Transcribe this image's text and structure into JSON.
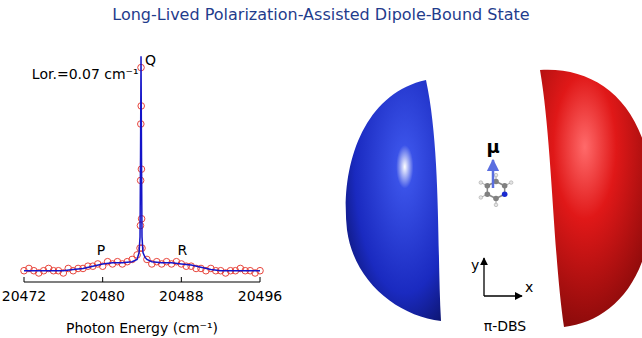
{
  "chart_data": {
    "type": "scatter",
    "title": "Long-Lived Polarization-Assisted Dipole-Bound State",
    "x_label": "Photon Energy (cm⁻¹)",
    "xlim": [
      20472,
      20496
    ],
    "xticks": [
      20472,
      20480,
      20488,
      20496
    ],
    "ylim": [
      0,
      1.05
    ],
    "tick_labels": "x",
    "grid": false,
    "series": [
      {
        "type": "scatter",
        "color": "#e8453c",
        "marker": "circle",
        "x": [
          20472,
          20472.5,
          20473,
          20473.5,
          20474,
          20474.5,
          20475,
          20475.5,
          20476,
          20476.5,
          20477,
          20477.5,
          20478,
          20478.5,
          20479,
          20479.5,
          20480,
          20480.5,
          20481,
          20481.5,
          20482,
          20482.5,
          20483,
          20483.5,
          20483.8,
          20483.84,
          20483.86,
          20483.88,
          20483.9,
          20483.92,
          20483.94,
          20483.96,
          20484,
          20484.5,
          20485,
          20485.5,
          20486,
          20486.5,
          20487,
          20487.5,
          20488,
          20488.5,
          20489,
          20489.5,
          20490,
          20490.5,
          20491,
          20491.5,
          20492,
          20492.5,
          20493,
          20493.5,
          20494,
          20494.5,
          20495,
          20495.5,
          20496
        ],
        "values": [
          0.05,
          0.06,
          0.05,
          0.04,
          0.05,
          0.06,
          0.05,
          0.05,
          0.04,
          0.06,
          0.05,
          0.06,
          0.06,
          0.07,
          0.07,
          0.08,
          0.07,
          0.09,
          0.08,
          0.09,
          0.08,
          0.09,
          0.1,
          0.12,
          0.15,
          0.25,
          0.45,
          0.7,
          0.95,
          0.78,
          0.5,
          0.28,
          0.15,
          0.1,
          0.08,
          0.09,
          0.08,
          0.09,
          0.08,
          0.09,
          0.08,
          0.07,
          0.07,
          0.06,
          0.06,
          0.05,
          0.06,
          0.05,
          0.05,
          0.04,
          0.05,
          0.05,
          0.06,
          0.05,
          0.05,
          0.04,
          0.05
        ]
      },
      {
        "type": "line",
        "color": "#1414c8",
        "line_style": "solid",
        "x": [
          20472,
          20474,
          20476,
          20477,
          20478,
          20479,
          20480,
          20481,
          20482,
          20483,
          20483.5,
          20483.7,
          20483.8,
          20483.85,
          20483.9,
          20483.95,
          20484,
          20484.1,
          20484.3,
          20484.5,
          20485,
          20486,
          20487,
          20488,
          20489,
          20490,
          20491,
          20492,
          20494,
          20496
        ],
        "values": [
          0.05,
          0.05,
          0.05,
          0.055,
          0.06,
          0.07,
          0.08,
          0.085,
          0.085,
          0.09,
          0.1,
          0.13,
          0.2,
          0.55,
          1.0,
          0.55,
          0.2,
          0.13,
          0.11,
          0.1,
          0.09,
          0.085,
          0.085,
          0.08,
          0.075,
          0.065,
          0.055,
          0.05,
          0.05,
          0.05
        ]
      }
    ],
    "annotations": [
      {
        "text": "Lor.=0.07 cm⁻¹",
        "x": 20472.8,
        "y": 0.9
      },
      {
        "text": "Q",
        "x": 20484.3,
        "y": 0.96
      },
      {
        "text": "P",
        "x": 20479.4,
        "y": 0.12
      },
      {
        "text": "R",
        "x": 20487.6,
        "y": 0.12
      }
    ]
  },
  "diagram": {
    "dipole_label": "μ",
    "axis_y_label": "y",
    "axis_x_label": "x",
    "caption": "π-DBS"
  }
}
